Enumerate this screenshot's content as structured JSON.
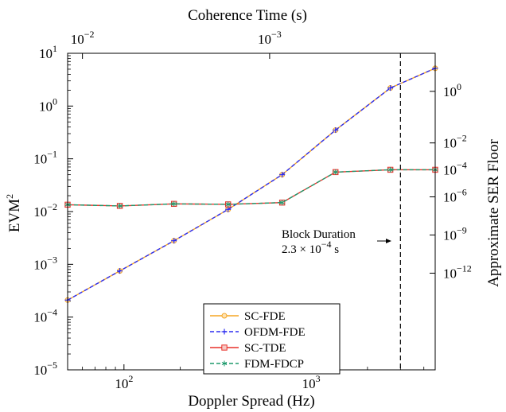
{
  "chart_data": {
    "type": "line",
    "x_title": "Doppler Spread (Hz)",
    "y_title": "EVM",
    "y_title_sup": "2",
    "top_title": "Coherence Time (s)",
    "right_title": "Approximate SER Floor",
    "x_scale": "log",
    "y_scale": "log",
    "xlim": [
      50,
      4600
    ],
    "ylim": [
      1e-05,
      10
    ],
    "x_ticks": [
      {
        "value": 100,
        "base": "10",
        "exp": "2"
      },
      {
        "value": 1000,
        "base": "10",
        "exp": "3"
      }
    ],
    "y_ticks": [
      {
        "value": 1e-05,
        "base": "10",
        "exp": "−5"
      },
      {
        "value": 0.0001,
        "base": "10",
        "exp": "−4"
      },
      {
        "value": 0.001,
        "base": "10",
        "exp": "−3"
      },
      {
        "value": 0.01,
        "base": "10",
        "exp": "−2"
      },
      {
        "value": 0.1,
        "base": "10",
        "exp": "−1"
      },
      {
        "value": 1,
        "base": "10",
        "exp": "0"
      },
      {
        "value": 10,
        "base": "10",
        "exp": "1"
      }
    ],
    "top_ticks": [
      {
        "at_x": 60,
        "base": "10",
        "exp": "−2"
      },
      {
        "at_x": 600,
        "base": "10",
        "exp": "−3"
      }
    ],
    "right_ticks": [
      {
        "at_y": 1.9,
        "base": "10",
        "exp": "0"
      },
      {
        "at_y": 0.2,
        "base": "10",
        "exp": "−2"
      },
      {
        "at_y": 0.062,
        "base": "10",
        "exp": "−4"
      },
      {
        "at_y": 0.019,
        "base": "10",
        "exp": "−6"
      },
      {
        "at_y": 0.0036,
        "base": "10",
        "exp": "−9"
      },
      {
        "at_y": 0.00068,
        "base": "10",
        "exp": "−12"
      }
    ],
    "x": [
      50,
      95,
      185,
      360,
      700,
      1350,
      2650,
      4600
    ],
    "series": [
      {
        "name": "SC-FDE",
        "color": "#f5a623",
        "dash": "solid",
        "marker": "circle",
        "values": [
          0.00021,
          0.00075,
          0.0028,
          0.011,
          0.05,
          0.35,
          2.2,
          5.2
        ]
      },
      {
        "name": "OFDM-FDE",
        "color": "#2d2df0",
        "dash": "dashed",
        "marker": "plus",
        "values": [
          0.00021,
          0.00075,
          0.0028,
          0.011,
          0.05,
          0.35,
          2.2,
          5.2
        ]
      },
      {
        "name": "SC-TDE",
        "color": "#e8312a",
        "dash": "solid",
        "marker": "square",
        "values": [
          0.0135,
          0.0128,
          0.014,
          0.0137,
          0.0148,
          0.056,
          0.062,
          0.062
        ]
      },
      {
        "name": "FDM-FDCP",
        "color": "#1e9a6c",
        "dash": "dashed",
        "marker": "asterisk",
        "values": [
          0.0135,
          0.0128,
          0.014,
          0.0137,
          0.0148,
          0.056,
          0.062,
          0.062
        ]
      }
    ],
    "vline": {
      "x": 3000,
      "style": "dashed"
    },
    "annotation": {
      "line1": "Block Duration",
      "line2_base": "2.3 × 10",
      "line2_exp": "−4",
      "line2_unit": " s"
    },
    "legend_position": "bottom-center",
    "grid": false
  }
}
